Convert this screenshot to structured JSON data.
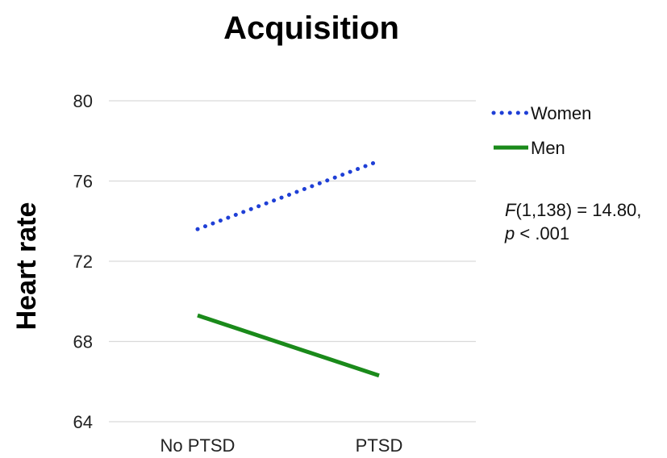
{
  "chart_data": {
    "type": "line",
    "title": "Acquisition",
    "ylabel": "Heart rate",
    "xlabel": "",
    "categories": [
      "No PTSD",
      "PTSD"
    ],
    "ylim": [
      64,
      80
    ],
    "yticks": [
      64,
      68,
      72,
      76,
      80
    ],
    "grid": true,
    "legend": "right",
    "series": [
      {
        "name": "Women",
        "values": [
          73.6,
          77.0
        ],
        "color": "#1f3fd6",
        "style": "dotted"
      },
      {
        "name": "Men",
        "values": [
          69.3,
          66.3
        ],
        "color": "#1a8a1a",
        "style": "solid"
      }
    ],
    "annotation": {
      "stat_letter": "F",
      "stat_rest": "(1,138) = 14.80,",
      "p_letter": "p",
      "p_rest": " < .001"
    }
  }
}
